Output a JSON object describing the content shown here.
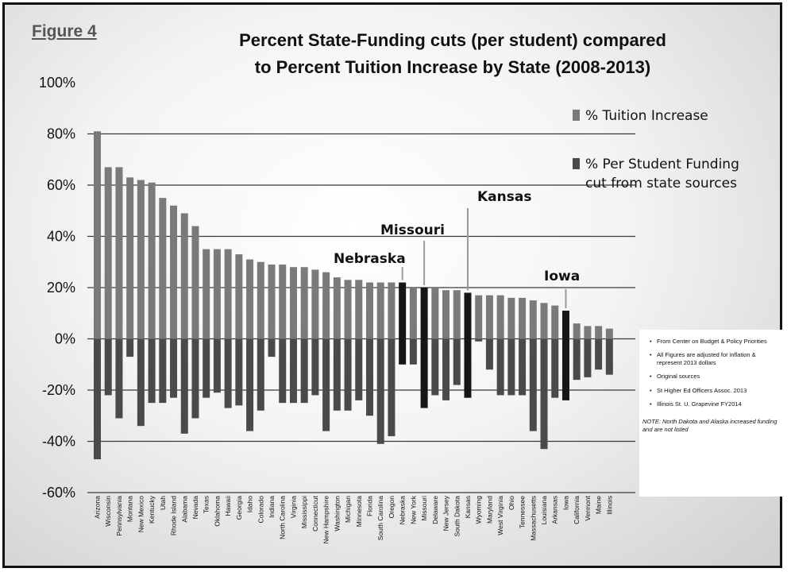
{
  "figure_label": "Figure 4",
  "notes": [
    "From Center on Budget & Policy Priorities",
    "All Figures are adjusted for inflation & represent 2013 dollars",
    "Original sources",
    "St Higher Ed Officers Assoc. 2013",
    "Illinois St. U. Grapevine FY2014"
  ],
  "note_text": "NOTE:   North Dakota and Alaska increased funding and are not listed",
  "colors": {
    "tuition": "#7a7a7a",
    "cut": "#4a4a4a",
    "highlight": "#161616",
    "grid": "#3a3a3a",
    "callout": "#9a9a9a"
  },
  "chart_data": {
    "type": "bar",
    "title_lines": [
      "Percent State-Funding cuts (per student) compared",
      "to Percent Tuition Increase by State (2008-2013)"
    ],
    "ylim": [
      -60,
      100
    ],
    "yticks": [
      -60,
      -40,
      -20,
      0,
      20,
      40,
      60,
      80,
      100
    ],
    "ytick_labels": [
      "-60%",
      "-40%",
      "-20%",
      "0%",
      "20%",
      "40%",
      "60%",
      "80%",
      "100%"
    ],
    "grid": true,
    "legend_position": "right",
    "categories": [
      "Arizona",
      "Wisconsin",
      "Pennsylvania",
      "Montana",
      "New Mexico",
      "Kentucky",
      "Utah",
      "Rhode Island",
      "Alabama",
      "Nevada",
      "Texas",
      "Oklahoma",
      "Hawaii",
      "Georgia",
      "Idaho",
      "Colorado",
      "Indiana",
      "North Carolina",
      "Virginia",
      "Mississippi",
      "Connecticut",
      "New Hampshire",
      "Washington",
      "Michigan",
      "Minnesota",
      "Florida",
      "South Carolina",
      "Oregon",
      "Nebraska",
      "New York",
      "Missouri",
      "Delaware",
      "New Jersey",
      "South Dakota",
      "Kansas",
      "Wyoming",
      "Maryland",
      "West Virginia",
      "Ohio",
      "Tennessee",
      "Massachusetts",
      "Louisiana",
      "Arkansas",
      "Iowa",
      "California",
      "Vermont",
      "Maine",
      "Illinois"
    ],
    "highlighted": [
      "Nebraska",
      "Missouri",
      "Kansas",
      "Iowa"
    ],
    "series": [
      {
        "name": "% Tuition Increase",
        "values": [
          81,
          67,
          67,
          63,
          62,
          61,
          55,
          52,
          49,
          44,
          35,
          35,
          35,
          33,
          31,
          30,
          29,
          29,
          28,
          28,
          27,
          26,
          24,
          23,
          23,
          22,
          22,
          22,
          22,
          20,
          20,
          20,
          19,
          19,
          18,
          17,
          17,
          17,
          16,
          16,
          15,
          14,
          13,
          11,
          6,
          5,
          5,
          4
        ]
      },
      {
        "name": "% Per Student Funding cut from state sources",
        "values": [
          -47,
          -22,
          -31,
          -7,
          -34,
          -25,
          -25,
          -23,
          -37,
          -31,
          -23,
          -21,
          -27,
          -26,
          -36,
          -28,
          -7,
          -25,
          -25,
          -25,
          -22,
          -36,
          -28,
          -28,
          -24,
          -30,
          -41,
          -38,
          -10,
          -10,
          -27,
          -22,
          -24,
          -18,
          -23,
          -1,
          -12,
          -22,
          -22,
          -22,
          -36,
          -43,
          -23,
          -24,
          -16,
          -15,
          -12,
          -14
        ]
      }
    ],
    "annotations": [
      {
        "text": "Nebraska",
        "category": "Nebraska"
      },
      {
        "text": "Missouri",
        "category": "Missouri"
      },
      {
        "text": "Kansas",
        "category": "Kansas"
      },
      {
        "text": "Iowa",
        "category": "Iowa"
      }
    ]
  }
}
